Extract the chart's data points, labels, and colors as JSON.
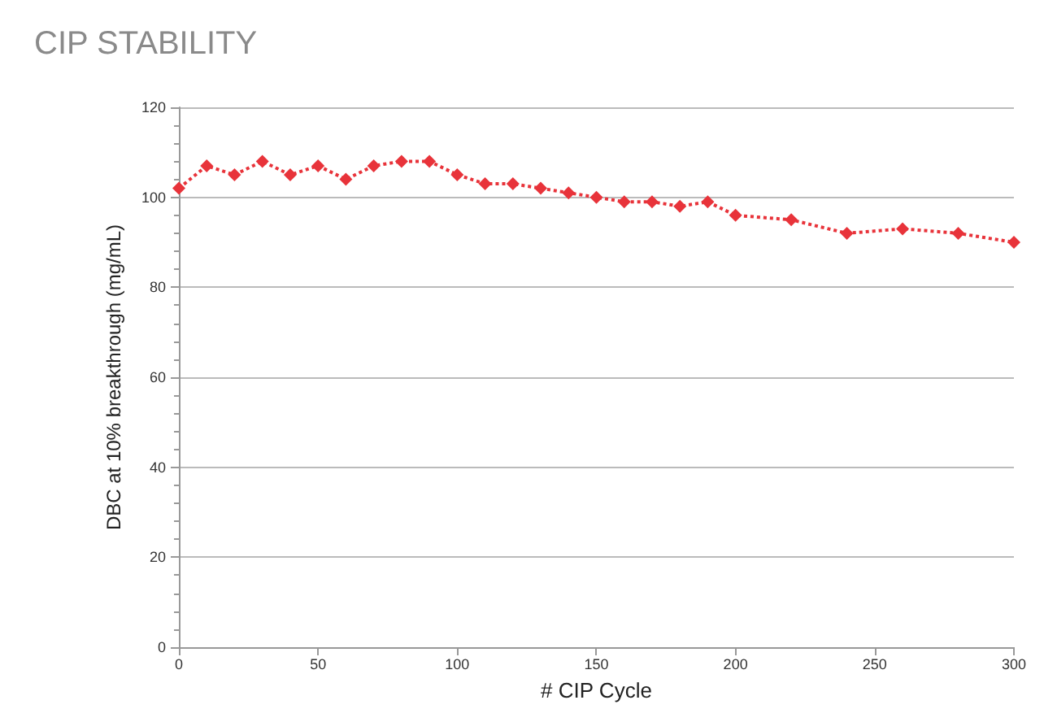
{
  "chart_data": {
    "type": "line",
    "title": "CIP STABILITY",
    "xlabel": "# CIP Cycle",
    "ylabel": "DBC at 10% breakthrough (mg/mL)",
    "x": [
      0,
      10,
      20,
      30,
      40,
      50,
      60,
      70,
      80,
      90,
      100,
      110,
      120,
      130,
      140,
      150,
      160,
      170,
      180,
      190,
      200,
      220,
      240,
      260,
      280,
      300
    ],
    "series": [
      {
        "color": "#e8333a",
        "values": [
          102,
          107,
          105,
          108,
          105,
          107,
          104,
          107,
          108,
          108,
          105,
          103,
          103,
          102,
          101,
          100,
          99,
          99,
          98,
          99,
          96,
          95,
          92,
          93,
          92,
          90
        ]
      }
    ],
    "xlim": [
      0,
      300
    ],
    "xticks": [
      0,
      50,
      100,
      150,
      200,
      250,
      300
    ],
    "ylim": [
      0,
      120
    ],
    "yticks": [
      0,
      20,
      40,
      60,
      80,
      100,
      120
    ],
    "grid": "y",
    "marker": "diamond",
    "line_style": "dotted"
  }
}
